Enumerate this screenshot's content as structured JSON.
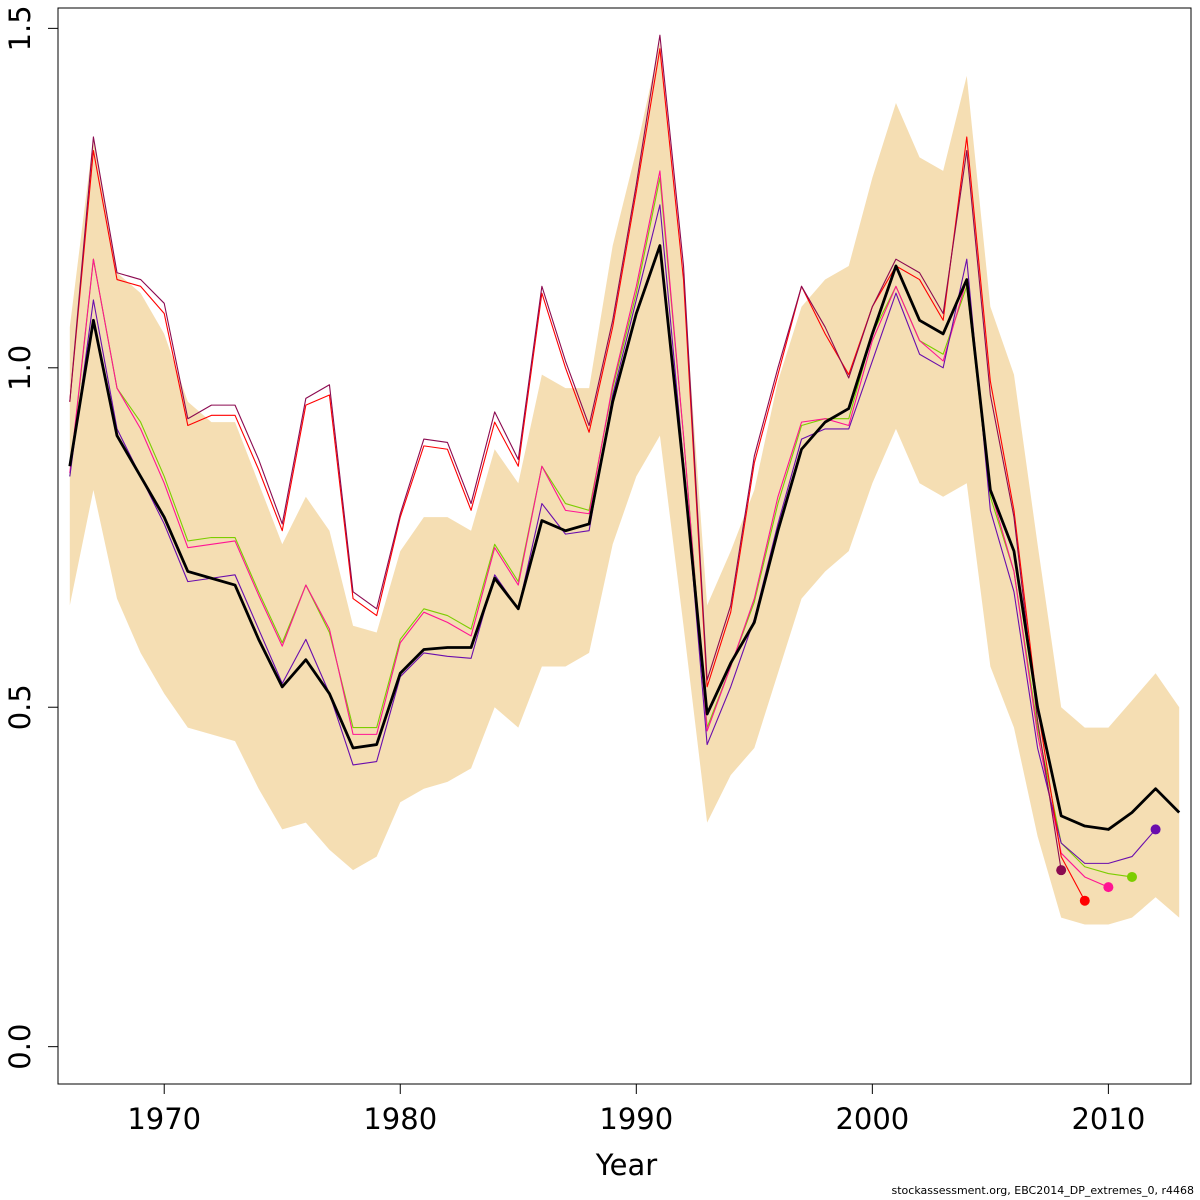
{
  "chart_data": {
    "type": "line",
    "xlabel": "Year",
    "ylabel": "",
    "xlim": [
      1965.5,
      2013.5
    ],
    "ylim": [
      -0.055,
      1.53
    ],
    "x_ticks": [
      1970,
      1980,
      1990,
      2000,
      2010
    ],
    "x_tick_labels": [
      "1970",
      "1980",
      "1990",
      "2000",
      "2010"
    ],
    "y_ticks": [
      0,
      0.5,
      1,
      1.5
    ],
    "y_tick_labels": [
      "0.0",
      "0.5",
      "1.0",
      "1.5"
    ],
    "grid": false,
    "band_color": "#F5DEB3",
    "band_years": [
      1966,
      1967,
      1968,
      1969,
      1970,
      1971,
      1972,
      1973,
      1974,
      1975,
      1976,
      1977,
      1978,
      1979,
      1980,
      1981,
      1982,
      1983,
      1984,
      1985,
      1986,
      1987,
      1988,
      1989,
      1990,
      1991,
      1992,
      1993,
      1994,
      1995,
      1996,
      1997,
      1998,
      1999,
      2000,
      2001,
      2002,
      2003,
      2004,
      2005,
      2006,
      2007,
      2008,
      2009,
      2010,
      2011,
      2012,
      2013
    ],
    "band_upper": [
      1.06,
      1.34,
      1.14,
      1.11,
      1.05,
      0.95,
      0.92,
      0.92,
      0.83,
      0.74,
      0.81,
      0.76,
      0.62,
      0.61,
      0.73,
      0.78,
      0.78,
      0.76,
      0.88,
      0.83,
      0.99,
      0.97,
      0.97,
      1.18,
      1.32,
      1.48,
      1.13,
      0.65,
      0.73,
      0.82,
      0.98,
      1.09,
      1.13,
      1.15,
      1.28,
      1.39,
      1.31,
      1.29,
      1.43,
      1.09,
      0.99,
      0.74,
      0.5,
      0.47,
      0.47,
      0.51,
      0.55,
      0.5
    ],
    "band_lower": [
      0.65,
      0.82,
      0.66,
      0.58,
      0.52,
      0.47,
      0.46,
      0.45,
      0.38,
      0.32,
      0.33,
      0.29,
      0.26,
      0.28,
      0.36,
      0.38,
      0.39,
      0.41,
      0.5,
      0.47,
      0.56,
      0.56,
      0.58,
      0.74,
      0.84,
      0.9,
      0.62,
      0.33,
      0.4,
      0.44,
      0.55,
      0.66,
      0.7,
      0.73,
      0.83,
      0.91,
      0.83,
      0.81,
      0.83,
      0.56,
      0.47,
      0.31,
      0.19,
      0.18,
      0.18,
      0.19,
      0.22,
      0.19
    ],
    "series": [
      {
        "color": "#000000",
        "width": 2.8,
        "x": [
          1966,
          1967,
          1968,
          1969,
          1970,
          1971,
          1972,
          1973,
          1974,
          1975,
          1976,
          1977,
          1978,
          1979,
          1980,
          1981,
          1982,
          1983,
          1984,
          1985,
          1986,
          1987,
          1988,
          1989,
          1990,
          1991,
          1992,
          1993,
          1994,
          1995,
          1996,
          1997,
          1998,
          1999,
          2000,
          2001,
          2002,
          2003,
          2004,
          2005,
          2006,
          2007,
          2008,
          2009,
          2010,
          2011,
          2012,
          2013
        ],
        "y": [
          0.855,
          1.07,
          0.9,
          0.84,
          0.78,
          0.7,
          0.69,
          0.68,
          0.6,
          0.53,
          0.57,
          0.52,
          0.44,
          0.445,
          0.55,
          0.585,
          0.588,
          0.588,
          0.69,
          0.645,
          0.775,
          0.76,
          0.77,
          0.95,
          1.08,
          1.18,
          0.85,
          0.49,
          0.565,
          0.625,
          0.76,
          0.88,
          0.92,
          0.94,
          1.05,
          1.15,
          1.07,
          1.05,
          1.13,
          0.82,
          0.73,
          0.5,
          0.34,
          0.325,
          0.32,
          0.345,
          0.38,
          0.345
        ],
        "end_marker": false
      },
      {
        "color": "#7CCD00",
        "width": 1.1,
        "x": [
          1966,
          1967,
          1968,
          1969,
          1970,
          1971,
          1972,
          1973,
          1974,
          1975,
          1976,
          1977,
          1978,
          1979,
          1980,
          1981,
          1982,
          1983,
          1984,
          1985,
          1986,
          1987,
          1988,
          1989,
          1990,
          1991,
          1992,
          1993,
          1994,
          1995,
          1996,
          1997,
          1998,
          1999,
          2000,
          2001,
          2002,
          2003,
          2004,
          2005,
          2006,
          2007,
          2008,
          2009,
          2010,
          2011
        ],
        "y": [
          0.84,
          1.16,
          0.97,
          0.92,
          0.84,
          0.745,
          0.75,
          0.75,
          0.67,
          0.595,
          0.68,
          0.61,
          0.47,
          0.47,
          0.6,
          0.645,
          0.635,
          0.615,
          0.74,
          0.685,
          0.855,
          0.8,
          0.79,
          0.97,
          1.11,
          1.28,
          0.9,
          0.47,
          0.56,
          0.655,
          0.8,
          0.915,
          0.925,
          0.925,
          1.05,
          1.12,
          1.04,
          1.02,
          1.12,
          0.81,
          0.7,
          0.47,
          0.3,
          0.265,
          0.255,
          0.25
        ],
        "end_marker": true
      },
      {
        "color": "#FF1493",
        "width": 1.1,
        "x": [
          1966,
          1967,
          1968,
          1969,
          1970,
          1971,
          1972,
          1973,
          1974,
          1975,
          1976,
          1977,
          1978,
          1979,
          1980,
          1981,
          1982,
          1983,
          1984,
          1985,
          1986,
          1987,
          1988,
          1989,
          1990,
          1991,
          1992,
          1993,
          1994,
          1995,
          1996,
          1997,
          1998,
          1999,
          2000,
          2001,
          2002,
          2003,
          2004,
          2005,
          2006,
          2007,
          2008,
          2009,
          2010
        ],
        "y": [
          0.845,
          1.16,
          0.97,
          0.91,
          0.83,
          0.735,
          0.74,
          0.745,
          0.665,
          0.59,
          0.68,
          0.615,
          0.46,
          0.46,
          0.595,
          0.64,
          0.625,
          0.605,
          0.735,
          0.68,
          0.855,
          0.79,
          0.785,
          0.975,
          1.12,
          1.29,
          0.9,
          0.465,
          0.56,
          0.66,
          0.81,
          0.92,
          0.925,
          0.915,
          1.04,
          1.12,
          1.04,
          1.01,
          1.13,
          0.82,
          0.7,
          0.46,
          0.285,
          0.25,
          0.235
        ],
        "end_marker": true
      },
      {
        "color": "#6A0DAD",
        "width": 1.1,
        "x": [
          1966,
          1967,
          1968,
          1969,
          1970,
          1971,
          1972,
          1973,
          1974,
          1975,
          1976,
          1977,
          1978,
          1979,
          1980,
          1981,
          1982,
          1983,
          1984,
          1985,
          1986,
          1987,
          1988,
          1989,
          1990,
          1991,
          1992,
          1993,
          1994,
          1995,
          1996,
          1997,
          1998,
          1999,
          2000,
          2001,
          2002,
          2003,
          2004,
          2005,
          2006,
          2007,
          2008,
          2009,
          2010,
          2011,
          2012
        ],
        "y": [
          0.84,
          1.1,
          0.91,
          0.84,
          0.77,
          0.685,
          0.69,
          0.695,
          0.615,
          0.535,
          0.6,
          0.52,
          0.415,
          0.42,
          0.545,
          0.58,
          0.575,
          0.572,
          0.695,
          0.645,
          0.8,
          0.755,
          0.76,
          0.96,
          1.1,
          1.24,
          0.86,
          0.445,
          0.53,
          0.63,
          0.77,
          0.895,
          0.91,
          0.91,
          1.01,
          1.11,
          1.02,
          1,
          1.16,
          0.79,
          0.67,
          0.44,
          0.3,
          0.27,
          0.27,
          0.28,
          0.32
        ],
        "end_marker": true
      },
      {
        "color": "#FF0000",
        "width": 1.1,
        "x": [
          1966,
          1967,
          1968,
          1969,
          1970,
          1971,
          1972,
          1973,
          1974,
          1975,
          1976,
          1977,
          1978,
          1979,
          1980,
          1981,
          1982,
          1983,
          1984,
          1985,
          1986,
          1987,
          1988,
          1989,
          1990,
          1991,
          1992,
          1993,
          1994,
          1995,
          1996,
          1997,
          1998,
          1999,
          2000,
          2001,
          2002,
          2003,
          2004,
          2005,
          2006,
          2007,
          2008,
          2009
        ],
        "y": [
          0.95,
          1.32,
          1.13,
          1.12,
          1.08,
          0.915,
          0.93,
          0.93,
          0.85,
          0.76,
          0.945,
          0.96,
          0.66,
          0.635,
          0.78,
          0.885,
          0.88,
          0.79,
          0.92,
          0.855,
          1.11,
          1.0,
          0.905,
          1.06,
          1.26,
          1.47,
          1.13,
          0.53,
          0.64,
          0.86,
          0.99,
          1.12,
          1.05,
          0.99,
          1.09,
          1.15,
          1.13,
          1.07,
          1.34,
          0.98,
          0.79,
          0.5,
          0.28,
          0.215
        ],
        "end_marker": true
      },
      {
        "color": "#8B0A50",
        "width": 1.1,
        "x": [
          1966,
          1967,
          1968,
          1969,
          1970,
          1971,
          1972,
          1973,
          1974,
          1975,
          1976,
          1977,
          1978,
          1979,
          1980,
          1981,
          1982,
          1983,
          1984,
          1985,
          1986,
          1987,
          1988,
          1989,
          1990,
          1991,
          1992,
          1993,
          1994,
          1995,
          1996,
          1997,
          1998,
          1999,
          2000,
          2001,
          2002,
          2003,
          2004,
          2005,
          2006,
          2007,
          2008
        ],
        "y": [
          0.95,
          1.34,
          1.14,
          1.13,
          1.095,
          0.925,
          0.945,
          0.945,
          0.865,
          0.77,
          0.955,
          0.975,
          0.67,
          0.645,
          0.785,
          0.895,
          0.89,
          0.8,
          0.935,
          0.865,
          1.12,
          1.01,
          0.915,
          1.07,
          1.27,
          1.49,
          1.15,
          0.54,
          0.65,
          0.87,
          1.0,
          1.12,
          1.06,
          0.985,
          1.09,
          1.16,
          1.14,
          1.08,
          1.32,
          0.96,
          0.78,
          0.48,
          0.26
        ],
        "end_marker": true
      }
    ]
  },
  "footer_text": "stockassessment.org, EBC2014_DP_extremes_0, r4468"
}
